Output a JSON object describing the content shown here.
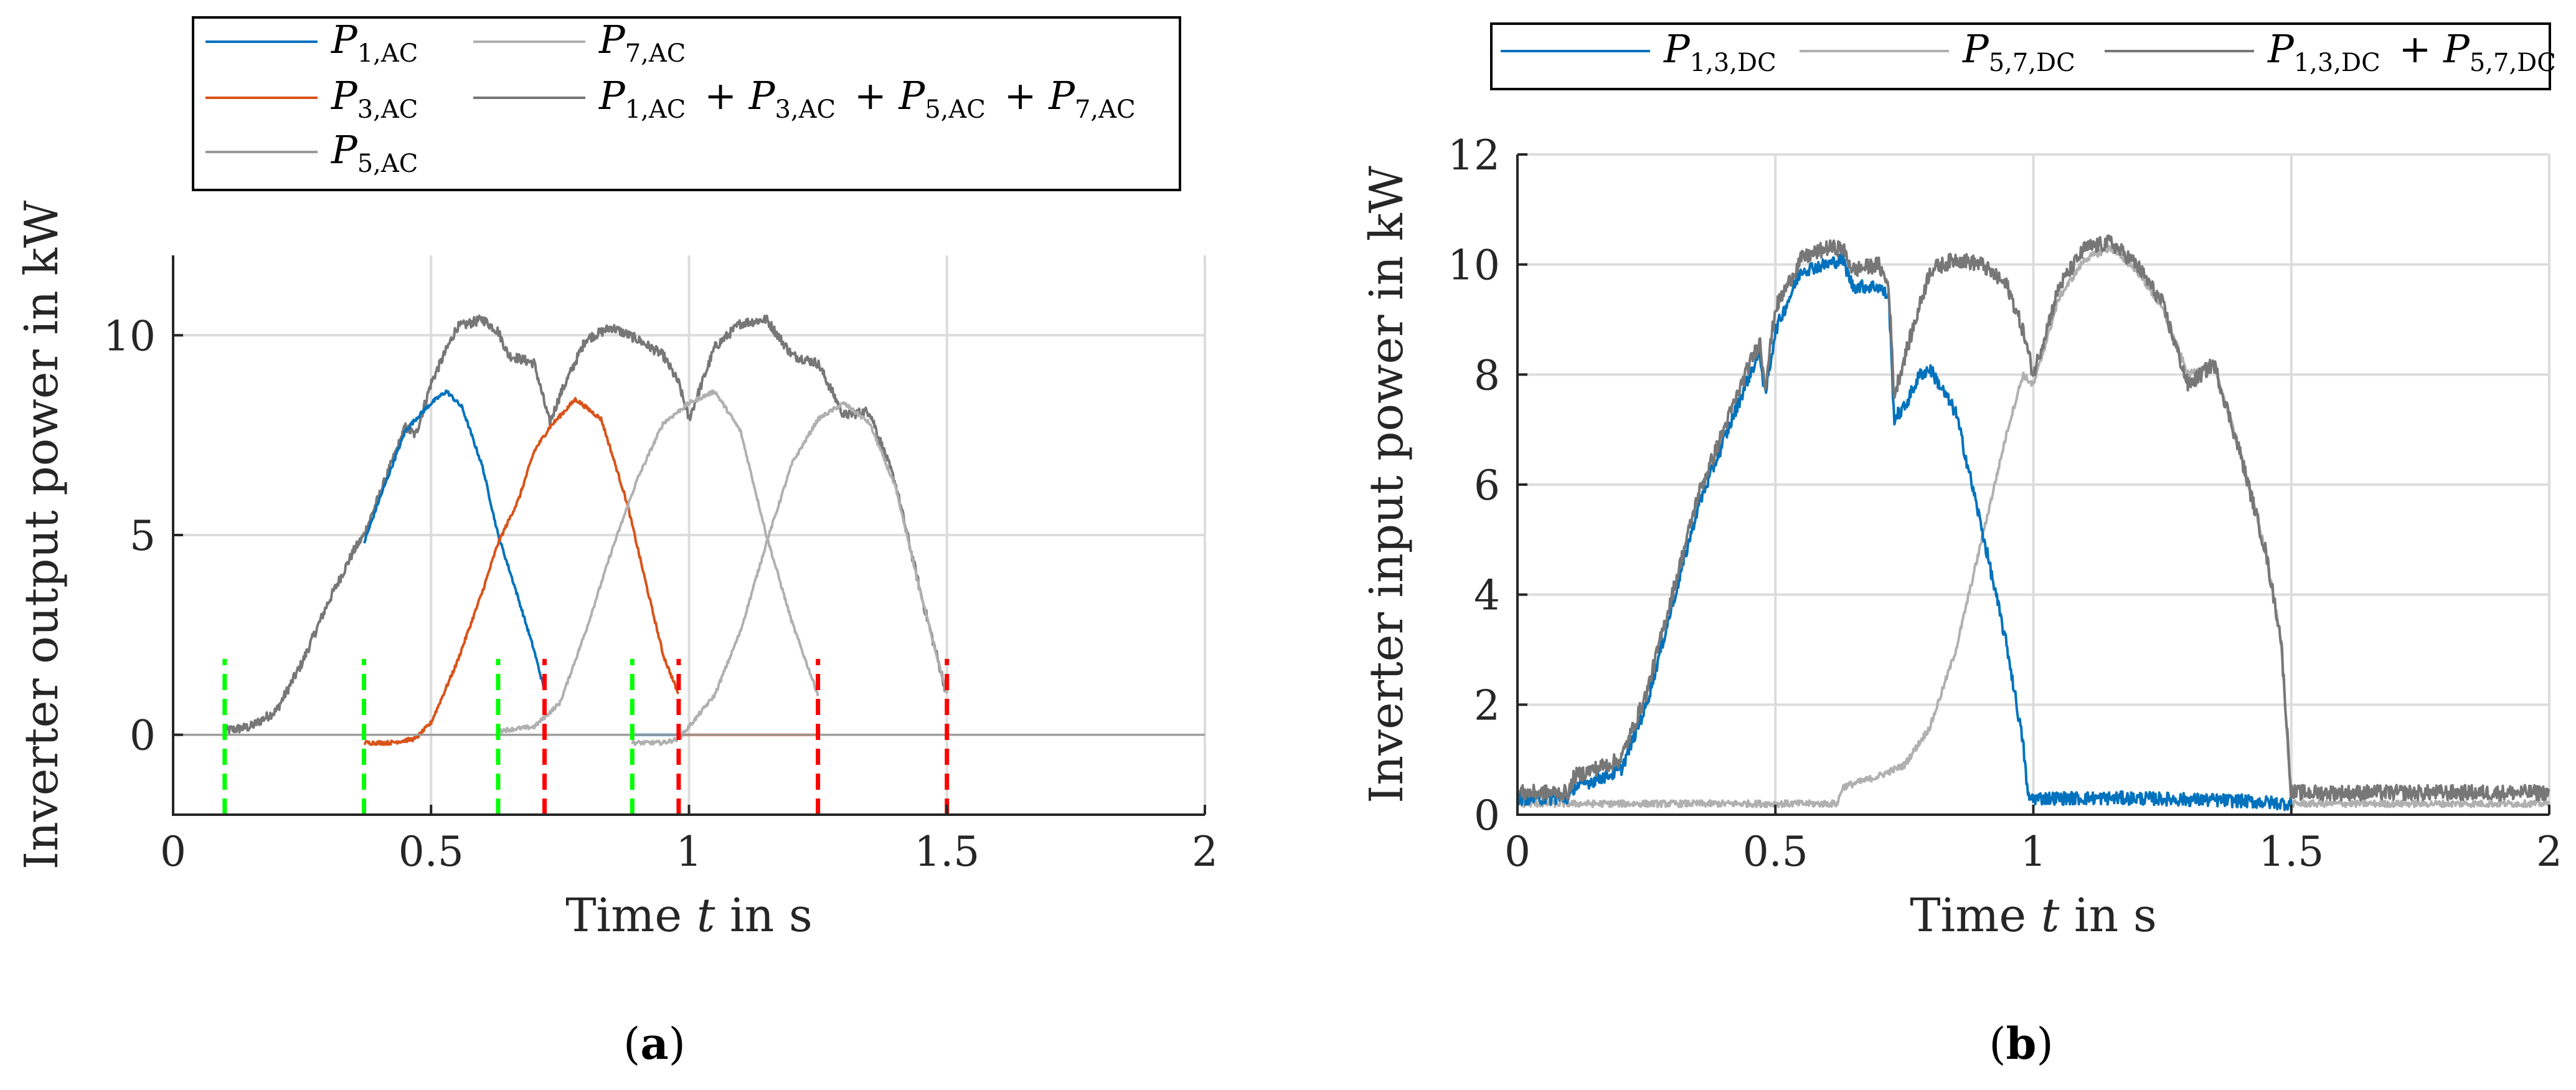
{
  "colors": {
    "blue": "#0072BD",
    "orange": "#D95319",
    "grey_light": "#b0b0b0",
    "grey_mid": "#999999",
    "grey_dark": "#777777",
    "green_marker": "#00ff00",
    "red_marker": "#ff0000"
  },
  "chart_data": [
    {
      "id": "a",
      "type": "line",
      "caption_letter": "a",
      "xlabel_pre": "Time ",
      "xlabel_var": "t",
      "xlabel_post": " in s",
      "ylabel": "Inverter output power in kW",
      "xlim": [
        0,
        2
      ],
      "ylim": [
        -2,
        12
      ],
      "xticks": [
        0,
        0.5,
        1,
        1.5,
        2
      ],
      "xtick_labels": [
        "0",
        "0.5",
        "1",
        "1.5",
        "2"
      ],
      "yticks": [
        0,
        5,
        10
      ],
      "ytick_labels": [
        "0",
        "5",
        "10"
      ],
      "grid": true,
      "legend_position": "top-center",
      "legend": [
        {
          "main": "P",
          "sub": "1,AC",
          "color_key": "blue"
        },
        {
          "main": "P",
          "sub": "7,AC",
          "color_key": "grey_light"
        },
        {
          "main": "P",
          "sub": "3,AC",
          "color_key": "orange"
        },
        {
          "main": "P",
          "sub": "1,AC",
          "extra": [
            [
              "+",
              "P",
              "3,AC"
            ],
            [
              "+",
              "P",
              "5,AC"
            ],
            [
              "+",
              "P",
              "7,AC"
            ]
          ],
          "color_key": "grey_dark"
        },
        {
          "main": "P",
          "sub": "5,AC",
          "color_key": "grey_mid"
        }
      ],
      "series": [
        {
          "name": "P_sum_AC",
          "color_key": "grey_dark",
          "noise": 0.12,
          "x": [
            0.1,
            0.15,
            0.2,
            0.25,
            0.3,
            0.35,
            0.37,
            0.4,
            0.45,
            0.47,
            0.5,
            0.55,
            0.6,
            0.63,
            0.65,
            0.7,
            0.73,
            0.75,
            0.8,
            0.85,
            0.9,
            0.95,
            0.98,
            1.0,
            1.05,
            1.1,
            1.15,
            1.2,
            1.25,
            1.3,
            1.35,
            1.4,
            1.45,
            1.5
          ],
          "y": [
            0.1,
            0.2,
            0.6,
            1.8,
            3.3,
            4.6,
            5.0,
            6.0,
            7.7,
            7.5,
            8.8,
            10.2,
            10.4,
            10.1,
            9.5,
            9.3,
            7.8,
            8.5,
            9.9,
            10.2,
            9.9,
            9.5,
            8.8,
            7.9,
            9.7,
            10.3,
            10.4,
            9.5,
            9.3,
            8.0,
            8.1,
            6.3,
            3.5,
            1.0
          ]
        },
        {
          "name": "P_1_AC",
          "color_key": "blue",
          "noise": 0.05,
          "x": [
            0.37,
            0.4,
            0.45,
            0.47,
            0.5,
            0.53,
            0.56,
            0.6,
            0.63,
            0.66,
            0.7,
            0.72
          ],
          "y": [
            4.8,
            5.9,
            7.6,
            7.9,
            8.3,
            8.6,
            8.2,
            6.7,
            5.0,
            3.8,
            2.1,
            1.1
          ]
        },
        {
          "name": "P_3_AC",
          "color_key": "orange",
          "noise": 0.05,
          "x": [
            0.37,
            0.42,
            0.47,
            0.5,
            0.55,
            0.6,
            0.63,
            0.67,
            0.7,
            0.73,
            0.78,
            0.83,
            0.88,
            0.92,
            0.95,
            0.98
          ],
          "y": [
            -0.2,
            -0.2,
            -0.1,
            0.3,
            1.8,
            3.6,
            4.8,
            5.9,
            7.1,
            7.7,
            8.4,
            7.9,
            5.8,
            3.6,
            2.0,
            1.0
          ]
        },
        {
          "name": "P_3_AC_tail",
          "color_key": "orange",
          "noise": 0.0,
          "x": [
            0.98,
            1.25
          ],
          "y": [
            0.0,
            0.0
          ]
        },
        {
          "name": "P_1_AC_tail",
          "color_key": "blue",
          "noise": 0.0,
          "x": [
            0.89,
            0.98
          ],
          "y": [
            0.0,
            0.0
          ]
        },
        {
          "name": "P_5_AC",
          "color_key": "grey_light",
          "noise": 0.05,
          "x": [
            0.63,
            0.7,
            0.75,
            0.8,
            0.85,
            0.9,
            0.95,
            1.0,
            1.05,
            1.1,
            1.15,
            1.2,
            1.25
          ],
          "y": [
            0.1,
            0.2,
            0.8,
            2.6,
            4.6,
            6.4,
            7.8,
            8.3,
            8.6,
            7.6,
            5.0,
            2.8,
            1.0
          ]
        },
        {
          "name": "P_7_AC",
          "color_key": "grey_light",
          "noise": 0.05,
          "x": [
            0.89,
            0.95,
            0.98,
            1.0,
            1.05,
            1.1,
            1.15,
            1.2,
            1.25,
            1.3,
            1.35,
            1.4,
            1.45,
            1.5
          ],
          "y": [
            -0.2,
            -0.2,
            -0.1,
            0.2,
            1.0,
            2.6,
            4.8,
            6.8,
            7.9,
            8.3,
            7.8,
            6.2,
            3.5,
            1.0
          ]
        },
        {
          "name": "zero_line",
          "color_key": "grey_mid",
          "noise": 0.0,
          "x": [
            0,
            2
          ],
          "y": [
            0,
            0
          ]
        }
      ],
      "vmarkers": [
        {
          "x": 0.1,
          "color_key": "green_marker"
        },
        {
          "x": 0.37,
          "color_key": "green_marker"
        },
        {
          "x": 0.63,
          "color_key": "green_marker"
        },
        {
          "x": 0.89,
          "color_key": "green_marker"
        },
        {
          "x": 0.72,
          "color_key": "red_marker"
        },
        {
          "x": 0.98,
          "color_key": "red_marker"
        },
        {
          "x": 1.25,
          "color_key": "red_marker"
        },
        {
          "x": 1.5,
          "color_key": "red_marker"
        }
      ],
      "vmarker_range": [
        -2,
        1.9
      ]
    },
    {
      "id": "b",
      "type": "line",
      "caption_letter": "b",
      "xlabel_pre": "Time ",
      "xlabel_var": "t",
      "xlabel_post": " in s",
      "ylabel": "Inverter input power in kW",
      "xlim": [
        0,
        2
      ],
      "ylim": [
        0,
        12
      ],
      "xticks": [
        0,
        0.5,
        1,
        1.5,
        2
      ],
      "xtick_labels": [
        "0",
        "0.5",
        "1",
        "1.5",
        "2"
      ],
      "yticks": [
        0,
        2,
        4,
        6,
        8,
        10,
        12
      ],
      "ytick_labels": [
        "0",
        "2",
        "4",
        "6",
        "8",
        "10",
        "12"
      ],
      "grid": true,
      "legend_position": "top",
      "legend": [
        {
          "main": "P",
          "sub": "1,3,DC",
          "color_key": "blue"
        },
        {
          "main": "P",
          "sub": "5,7,DC",
          "color_key": "grey_light"
        },
        {
          "main": "P",
          "sub": "1,3,DC",
          "extra": [
            [
              "+",
              "P",
              "5,7,DC"
            ]
          ],
          "color_key": "grey_dark"
        }
      ],
      "series": [
        {
          "name": "P_5_7_DC",
          "color_key": "grey_light",
          "noise": 0.06,
          "x": [
            0,
            0.2,
            0.4,
            0.62,
            0.63,
            0.7,
            0.75,
            0.8,
            0.85,
            0.9,
            0.95,
            0.98,
            1.0,
            1.05,
            1.1,
            1.15,
            1.2,
            1.25,
            1.3,
            1.35,
            1.4,
            1.45,
            1.48,
            1.5,
            1.55,
            1.7,
            2.0
          ],
          "y": [
            0.2,
            0.2,
            0.2,
            0.2,
            0.5,
            0.7,
            0.9,
            1.6,
            3.0,
            5.0,
            7.0,
            8.0,
            7.8,
            9.4,
            10.1,
            10.3,
            9.9,
            9.2,
            8.0,
            8.2,
            6.6,
            4.8,
            3.2,
            0.2,
            0.2,
            0.2,
            0.2
          ]
        },
        {
          "name": "P_1_3_DC",
          "color_key": "blue",
          "noise": 0.12,
          "x": [
            0,
            0.1,
            0.11,
            0.2,
            0.25,
            0.3,
            0.35,
            0.4,
            0.45,
            0.47,
            0.48,
            0.5,
            0.55,
            0.6,
            0.63,
            0.65,
            0.7,
            0.72,
            0.73,
            0.75,
            0.78,
            0.8,
            0.85,
            0.9,
            0.95,
            0.98,
            0.99,
            1.0,
            1.2,
            1.4,
            1.5
          ],
          "y": [
            0.3,
            0.3,
            0.5,
            0.8,
            2.0,
            3.8,
            5.6,
            6.8,
            8.0,
            8.4,
            7.6,
            8.8,
            9.9,
            10.0,
            10.1,
            9.6,
            9.6,
            9.4,
            7.2,
            7.4,
            8.0,
            8.1,
            7.3,
            5.2,
            3.0,
            1.3,
            0.3,
            0.3,
            0.3,
            0.25,
            0.2
          ]
        },
        {
          "name": "P_sum_DC",
          "color_key": "grey_dark",
          "noise": 0.14,
          "x": [
            0,
            0.1,
            0.11,
            0.2,
            0.25,
            0.3,
            0.35,
            0.4,
            0.45,
            0.47,
            0.48,
            0.5,
            0.55,
            0.6,
            0.63,
            0.65,
            0.7,
            0.72,
            0.73,
            0.75,
            0.8,
            0.85,
            0.9,
            0.95,
            0.98,
            1.0,
            1.05,
            1.1,
            1.15,
            1.2,
            1.25,
            1.3,
            1.35,
            1.4,
            1.45,
            1.48,
            1.5,
            1.55,
            1.7,
            2.0
          ],
          "y": [
            0.4,
            0.4,
            0.7,
            1.0,
            2.2,
            4.0,
            5.8,
            7.0,
            8.2,
            8.6,
            7.8,
            9.2,
            10.1,
            10.3,
            10.3,
            9.9,
            10.0,
            9.6,
            7.6,
            8.3,
            9.9,
            10.1,
            10.0,
            9.6,
            8.8,
            8.0,
            9.6,
            10.3,
            10.4,
            10.0,
            9.3,
            7.8,
            8.2,
            6.6,
            4.8,
            3.2,
            0.4,
            0.4,
            0.4,
            0.4
          ]
        }
      ]
    }
  ]
}
